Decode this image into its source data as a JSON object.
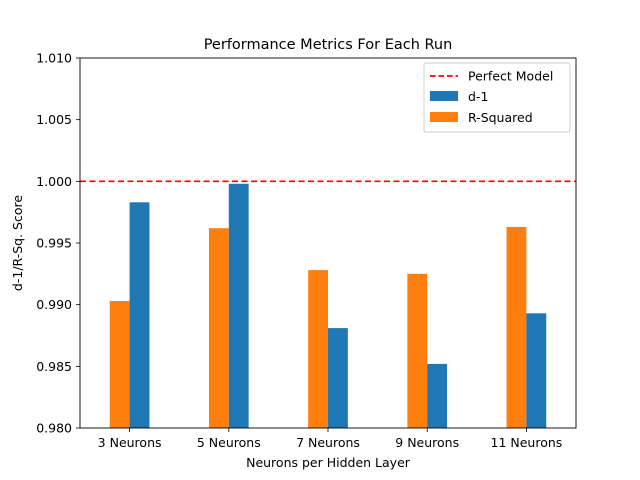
{
  "chart_data": {
    "type": "bar",
    "title": "Performance Metrics For Each Run",
    "xlabel": "Neurons per Hidden Layer",
    "ylabel": "d-1/R-Sq. Score",
    "categories": [
      "3 Neurons",
      "5 Neurons",
      "7 Neurons",
      "9 Neurons",
      "11 Neurons"
    ],
    "series": [
      {
        "name": "R-Squared",
        "color": "#ff7f0e",
        "values": [
          0.9903,
          0.9962,
          0.9928,
          0.9925,
          0.9963
        ]
      },
      {
        "name": "d-1",
        "color": "#1f77b4",
        "values": [
          0.9983,
          0.9998,
          0.9881,
          0.9852,
          0.9893
        ]
      }
    ],
    "reference_line": {
      "name": "Perfect Model",
      "value": 1.0,
      "color": "#ff0000",
      "style": "dashed"
    },
    "ylim": [
      0.98,
      1.01
    ],
    "yticks": [
      "0.980",
      "0.985",
      "0.990",
      "0.995",
      "1.000",
      "1.005",
      "1.010"
    ],
    "legend": {
      "placement": "top-right",
      "entries": [
        "Perfect Model",
        "d-1",
        "R-Squared"
      ]
    },
    "grid": false
  }
}
